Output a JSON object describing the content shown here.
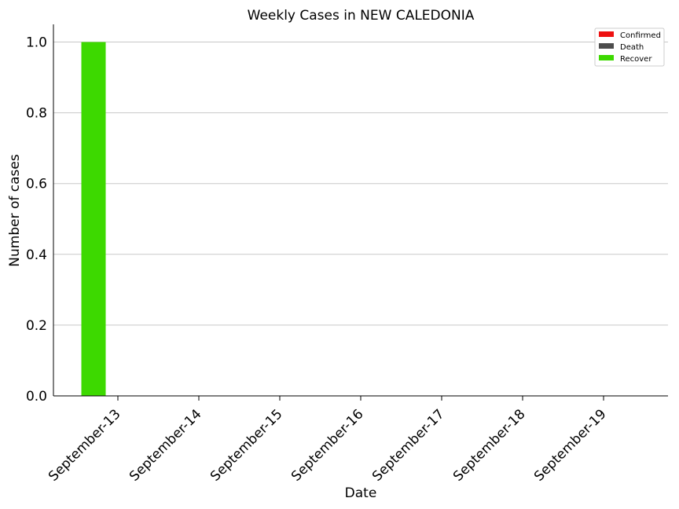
{
  "chart_data": {
    "type": "bar",
    "title": "Weekly Cases in NEW CALEDONIA",
    "xlabel": "Date",
    "ylabel": "Number of cases",
    "categories": [
      "September-13",
      "September-14",
      "September-15",
      "September-16",
      "September-17",
      "September-18",
      "September-19"
    ],
    "series": [
      {
        "name": "Confirmed",
        "color": "#ee1111",
        "values": [
          0,
          0,
          0,
          0,
          0,
          0,
          0
        ]
      },
      {
        "name": "Death",
        "color": "#4d4d4d",
        "values": [
          0,
          0,
          0,
          0,
          0,
          0,
          0
        ]
      },
      {
        "name": "Recover",
        "color": "#3dd900",
        "values": [
          1,
          0,
          0,
          0,
          0,
          0,
          0
        ]
      }
    ],
    "ylim": [
      0,
      1.05
    ],
    "yticks": [
      "0.0",
      "0.2",
      "0.4",
      "0.6",
      "0.8",
      "1.0"
    ],
    "grid": "horizontal",
    "legend_position": "top-right"
  }
}
